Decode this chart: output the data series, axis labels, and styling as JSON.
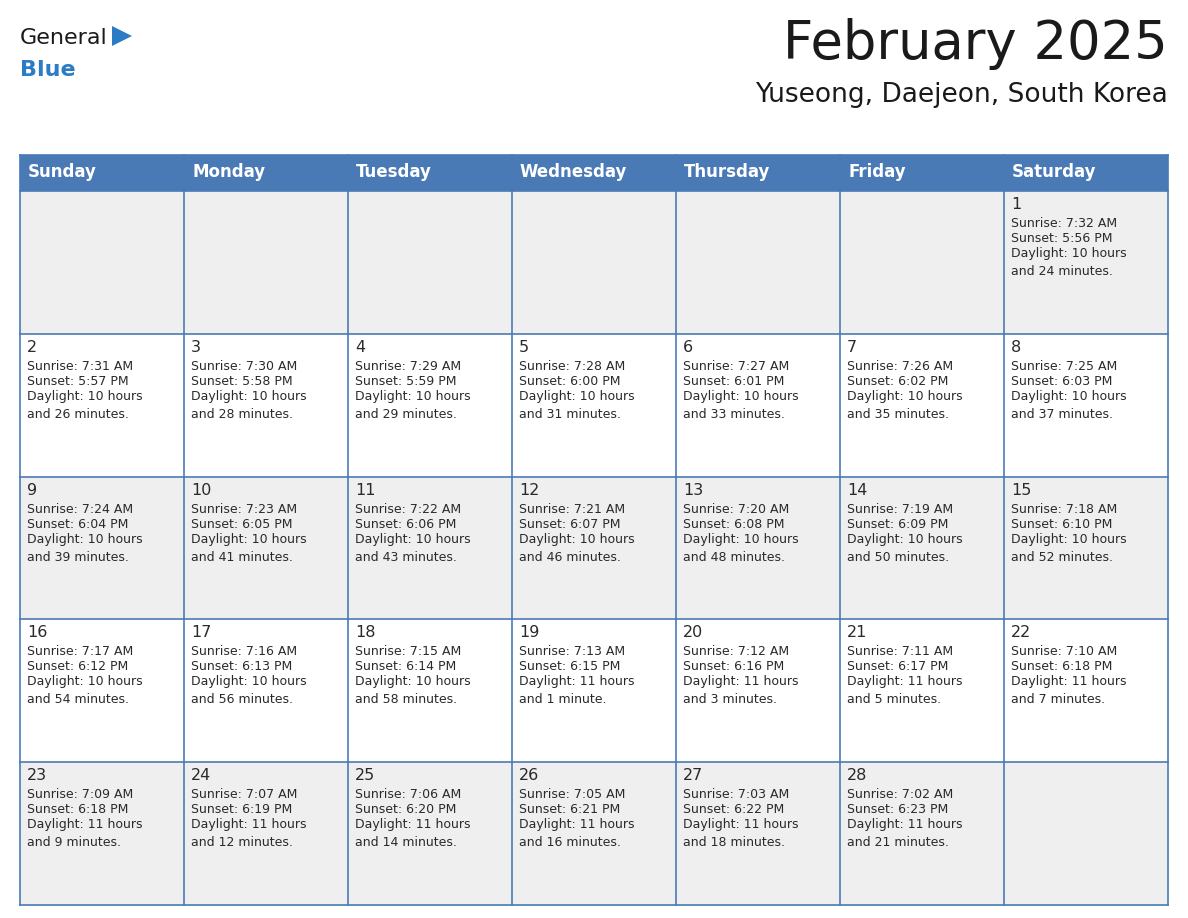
{
  "title": "February 2025",
  "subtitle": "Yuseong, Daejeon, South Korea",
  "header_bg": "#4a7ab5",
  "header_text": "#ffffff",
  "row_bg_0": "#efefef",
  "row_bg_1": "#ffffff",
  "row_bg_2": "#efefef",
  "row_bg_3": "#ffffff",
  "row_bg_4": "#efefef",
  "cell_border_color": "#4a7ab5",
  "day_headers": [
    "Sunday",
    "Monday",
    "Tuesday",
    "Wednesday",
    "Thursday",
    "Friday",
    "Saturday"
  ],
  "days": [
    {
      "day": 1,
      "col": 6,
      "row": 0,
      "sunrise": "7:32 AM",
      "sunset": "5:56 PM",
      "daylight": "10 hours\nand 24 minutes."
    },
    {
      "day": 2,
      "col": 0,
      "row": 1,
      "sunrise": "7:31 AM",
      "sunset": "5:57 PM",
      "daylight": "10 hours\nand 26 minutes."
    },
    {
      "day": 3,
      "col": 1,
      "row": 1,
      "sunrise": "7:30 AM",
      "sunset": "5:58 PM",
      "daylight": "10 hours\nand 28 minutes."
    },
    {
      "day": 4,
      "col": 2,
      "row": 1,
      "sunrise": "7:29 AM",
      "sunset": "5:59 PM",
      "daylight": "10 hours\nand 29 minutes."
    },
    {
      "day": 5,
      "col": 3,
      "row": 1,
      "sunrise": "7:28 AM",
      "sunset": "6:00 PM",
      "daylight": "10 hours\nand 31 minutes."
    },
    {
      "day": 6,
      "col": 4,
      "row": 1,
      "sunrise": "7:27 AM",
      "sunset": "6:01 PM",
      "daylight": "10 hours\nand 33 minutes."
    },
    {
      "day": 7,
      "col": 5,
      "row": 1,
      "sunrise": "7:26 AM",
      "sunset": "6:02 PM",
      "daylight": "10 hours\nand 35 minutes."
    },
    {
      "day": 8,
      "col": 6,
      "row": 1,
      "sunrise": "7:25 AM",
      "sunset": "6:03 PM",
      "daylight": "10 hours\nand 37 minutes."
    },
    {
      "day": 9,
      "col": 0,
      "row": 2,
      "sunrise": "7:24 AM",
      "sunset": "6:04 PM",
      "daylight": "10 hours\nand 39 minutes."
    },
    {
      "day": 10,
      "col": 1,
      "row": 2,
      "sunrise": "7:23 AM",
      "sunset": "6:05 PM",
      "daylight": "10 hours\nand 41 minutes."
    },
    {
      "day": 11,
      "col": 2,
      "row": 2,
      "sunrise": "7:22 AM",
      "sunset": "6:06 PM",
      "daylight": "10 hours\nand 43 minutes."
    },
    {
      "day": 12,
      "col": 3,
      "row": 2,
      "sunrise": "7:21 AM",
      "sunset": "6:07 PM",
      "daylight": "10 hours\nand 46 minutes."
    },
    {
      "day": 13,
      "col": 4,
      "row": 2,
      "sunrise": "7:20 AM",
      "sunset": "6:08 PM",
      "daylight": "10 hours\nand 48 minutes."
    },
    {
      "day": 14,
      "col": 5,
      "row": 2,
      "sunrise": "7:19 AM",
      "sunset": "6:09 PM",
      "daylight": "10 hours\nand 50 minutes."
    },
    {
      "day": 15,
      "col": 6,
      "row": 2,
      "sunrise": "7:18 AM",
      "sunset": "6:10 PM",
      "daylight": "10 hours\nand 52 minutes."
    },
    {
      "day": 16,
      "col": 0,
      "row": 3,
      "sunrise": "7:17 AM",
      "sunset": "6:12 PM",
      "daylight": "10 hours\nand 54 minutes."
    },
    {
      "day": 17,
      "col": 1,
      "row": 3,
      "sunrise": "7:16 AM",
      "sunset": "6:13 PM",
      "daylight": "10 hours\nand 56 minutes."
    },
    {
      "day": 18,
      "col": 2,
      "row": 3,
      "sunrise": "7:15 AM",
      "sunset": "6:14 PM",
      "daylight": "10 hours\nand 58 minutes."
    },
    {
      "day": 19,
      "col": 3,
      "row": 3,
      "sunrise": "7:13 AM",
      "sunset": "6:15 PM",
      "daylight": "11 hours\nand 1 minute."
    },
    {
      "day": 20,
      "col": 4,
      "row": 3,
      "sunrise": "7:12 AM",
      "sunset": "6:16 PM",
      "daylight": "11 hours\nand 3 minutes."
    },
    {
      "day": 21,
      "col": 5,
      "row": 3,
      "sunrise": "7:11 AM",
      "sunset": "6:17 PM",
      "daylight": "11 hours\nand 5 minutes."
    },
    {
      "day": 22,
      "col": 6,
      "row": 3,
      "sunrise": "7:10 AM",
      "sunset": "6:18 PM",
      "daylight": "11 hours\nand 7 minutes."
    },
    {
      "day": 23,
      "col": 0,
      "row": 4,
      "sunrise": "7:09 AM",
      "sunset": "6:18 PM",
      "daylight": "11 hours\nand 9 minutes."
    },
    {
      "day": 24,
      "col": 1,
      "row": 4,
      "sunrise": "7:07 AM",
      "sunset": "6:19 PM",
      "daylight": "11 hours\nand 12 minutes."
    },
    {
      "day": 25,
      "col": 2,
      "row": 4,
      "sunrise": "7:06 AM",
      "sunset": "6:20 PM",
      "daylight": "11 hours\nand 14 minutes."
    },
    {
      "day": 26,
      "col": 3,
      "row": 4,
      "sunrise": "7:05 AM",
      "sunset": "6:21 PM",
      "daylight": "11 hours\nand 16 minutes."
    },
    {
      "day": 27,
      "col": 4,
      "row": 4,
      "sunrise": "7:03 AM",
      "sunset": "6:22 PM",
      "daylight": "11 hours\nand 18 minutes."
    },
    {
      "day": 28,
      "col": 5,
      "row": 4,
      "sunrise": "7:02 AM",
      "sunset": "6:23 PM",
      "daylight": "11 hours\nand 21 minutes."
    }
  ],
  "logo_color_general": "#1a1a1a",
  "logo_color_blue": "#2b7cc4",
  "logo_triangle_color": "#2b7cc4",
  "fig_width": 11.88,
  "fig_height": 9.18,
  "dpi": 100
}
